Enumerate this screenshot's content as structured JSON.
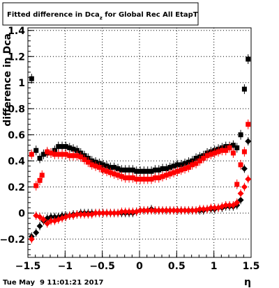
{
  "chart_data": {
    "type": "scatter",
    "title": "Fitted difference in Dca",
    "title_subscript": "z",
    "title_suffix": " for Global Rec All EtapT",
    "xlabel": "η",
    "ylabel": "difference in Dca",
    "xlim": [
      -1.5,
      1.5
    ],
    "ylim": [
      -0.34,
      1.42
    ],
    "x_ticks": [
      -1.5,
      -1,
      -0.5,
      0,
      0.5,
      1,
      1.5
    ],
    "x_tick_labels": [
      "−1.5",
      "−1",
      "−0.5",
      "0",
      "0.5",
      "1",
      "1.5"
    ],
    "y_ticks": [
      -0.2,
      0,
      0.2,
      0.4,
      0.6,
      0.8,
      1,
      1.2,
      1.4
    ],
    "y_tick_labels": [
      "−0.2",
      "0",
      "0.2",
      "0.4",
      "0.6",
      "0.8",
      "1",
      "1.2",
      "1.4"
    ],
    "grid": true,
    "footer": "Tue May  9 11:01:21 2017",
    "series": [
      {
        "marker": "square",
        "color": "#000000",
        "points": [
          [
            -1.45,
            1.03
          ],
          [
            -1.39,
            0.48
          ],
          [
            -1.34,
            0.42
          ],
          [
            -1.29,
            0.45
          ],
          [
            -1.24,
            0.46
          ],
          [
            -1.19,
            0.46
          ],
          [
            -1.14,
            0.48
          ],
          [
            -1.09,
            0.51
          ],
          [
            -1.04,
            0.51
          ],
          [
            -0.99,
            0.51
          ],
          [
            -0.94,
            0.5
          ],
          [
            -0.89,
            0.49
          ],
          [
            -0.84,
            0.48
          ],
          [
            -0.79,
            0.46
          ],
          [
            -0.74,
            0.44
          ],
          [
            -0.69,
            0.42
          ],
          [
            -0.64,
            0.4
          ],
          [
            -0.59,
            0.39
          ],
          [
            -0.54,
            0.38
          ],
          [
            -0.49,
            0.37
          ],
          [
            -0.44,
            0.36
          ],
          [
            -0.39,
            0.35
          ],
          [
            -0.34,
            0.35
          ],
          [
            -0.29,
            0.34
          ],
          [
            -0.24,
            0.33
          ],
          [
            -0.19,
            0.33
          ],
          [
            -0.14,
            0.33
          ],
          [
            -0.09,
            0.33
          ],
          [
            -0.04,
            0.32
          ],
          [
            0.01,
            0.32
          ],
          [
            0.06,
            0.32
          ],
          [
            0.11,
            0.32
          ],
          [
            0.16,
            0.32
          ],
          [
            0.21,
            0.33
          ],
          [
            0.26,
            0.33
          ],
          [
            0.31,
            0.34
          ],
          [
            0.36,
            0.34
          ],
          [
            0.41,
            0.35
          ],
          [
            0.46,
            0.36
          ],
          [
            0.51,
            0.37
          ],
          [
            0.56,
            0.37
          ],
          [
            0.61,
            0.38
          ],
          [
            0.66,
            0.39
          ],
          [
            0.71,
            0.4
          ],
          [
            0.76,
            0.42
          ],
          [
            0.81,
            0.43
          ],
          [
            0.86,
            0.44
          ],
          [
            0.91,
            0.46
          ],
          [
            0.96,
            0.47
          ],
          [
            1.01,
            0.48
          ],
          [
            1.06,
            0.49
          ],
          [
            1.11,
            0.5
          ],
          [
            1.16,
            0.51
          ],
          [
            1.21,
            0.51
          ],
          [
            1.26,
            0.52
          ],
          [
            1.31,
            0.5
          ],
          [
            1.36,
            0.6
          ],
          [
            1.41,
            0.95
          ],
          [
            1.46,
            1.18
          ]
        ]
      },
      {
        "marker": "square",
        "color": "#ff0000",
        "points": [
          [
            -1.45,
            0.45
          ],
          [
            -1.39,
            0.21
          ],
          [
            -1.34,
            0.25
          ],
          [
            -1.31,
            0.29
          ],
          [
            -1.24,
            0.47
          ],
          [
            -1.19,
            0.46
          ],
          [
            -1.14,
            0.45
          ],
          [
            -1.09,
            0.45
          ],
          [
            -1.04,
            0.45
          ],
          [
            -0.99,
            0.45
          ],
          [
            -0.94,
            0.44
          ],
          [
            -0.89,
            0.44
          ],
          [
            -0.84,
            0.44
          ],
          [
            -0.79,
            0.43
          ],
          [
            -0.74,
            0.41
          ],
          [
            -0.69,
            0.39
          ],
          [
            -0.64,
            0.37
          ],
          [
            -0.59,
            0.36
          ],
          [
            -0.54,
            0.35
          ],
          [
            -0.49,
            0.33
          ],
          [
            -0.44,
            0.32
          ],
          [
            -0.39,
            0.31
          ],
          [
            -0.34,
            0.3
          ],
          [
            -0.29,
            0.29
          ],
          [
            -0.24,
            0.28
          ],
          [
            -0.19,
            0.27
          ],
          [
            -0.14,
            0.27
          ],
          [
            -0.09,
            0.27
          ],
          [
            -0.04,
            0.26
          ],
          [
            0.01,
            0.26
          ],
          [
            0.06,
            0.26
          ],
          [
            0.11,
            0.26
          ],
          [
            0.16,
            0.26
          ],
          [
            0.21,
            0.27
          ],
          [
            0.26,
            0.27
          ],
          [
            0.31,
            0.28
          ],
          [
            0.36,
            0.29
          ],
          [
            0.41,
            0.3
          ],
          [
            0.46,
            0.31
          ],
          [
            0.51,
            0.32
          ],
          [
            0.56,
            0.33
          ],
          [
            0.61,
            0.34
          ],
          [
            0.66,
            0.35
          ],
          [
            0.71,
            0.37
          ],
          [
            0.76,
            0.38
          ],
          [
            0.81,
            0.4
          ],
          [
            0.86,
            0.42
          ],
          [
            0.91,
            0.44
          ],
          [
            0.96,
            0.45
          ],
          [
            1.01,
            0.46
          ],
          [
            1.06,
            0.47
          ],
          [
            1.11,
            0.48
          ],
          [
            1.16,
            0.48
          ],
          [
            1.21,
            0.5
          ],
          [
            1.26,
            0.46
          ],
          [
            1.31,
            0.22
          ],
          [
            1.36,
            0.37
          ],
          [
            1.41,
            0.47
          ],
          [
            1.46,
            0.68
          ]
        ]
      },
      {
        "marker": "diamond",
        "color": "#000000",
        "points": [
          [
            -1.45,
            -0.18
          ],
          [
            -1.39,
            -0.15
          ],
          [
            -1.34,
            -0.1
          ],
          [
            -1.29,
            -0.06
          ],
          [
            -1.24,
            -0.04
          ],
          [
            -1.19,
            -0.03
          ],
          [
            -1.14,
            -0.03
          ],
          [
            -1.09,
            -0.03
          ],
          [
            -1.04,
            -0.02
          ],
          [
            -0.99,
            -0.02
          ],
          [
            -0.94,
            -0.02
          ],
          [
            -0.89,
            -0.01
          ],
          [
            -0.84,
            -0.01
          ],
          [
            -0.79,
            0.0
          ],
          [
            -0.74,
            0.0
          ],
          [
            -0.69,
            0.0
          ],
          [
            -0.64,
            0.0
          ],
          [
            -0.59,
            0.0
          ],
          [
            -0.54,
            0.0
          ],
          [
            -0.49,
            0.0
          ],
          [
            -0.44,
            0.0
          ],
          [
            -0.39,
            0.0
          ],
          [
            -0.34,
            0.0
          ],
          [
            -0.29,
            0.0
          ],
          [
            -0.24,
            0.0
          ],
          [
            -0.19,
            0.0
          ],
          [
            -0.14,
            0.0
          ],
          [
            -0.09,
            0.0
          ],
          [
            -0.04,
            0.01
          ],
          [
            0.01,
            0.02
          ],
          [
            0.06,
            0.02
          ],
          [
            0.11,
            0.02
          ],
          [
            0.16,
            0.03
          ],
          [
            0.21,
            0.02
          ],
          [
            0.26,
            0.02
          ],
          [
            0.31,
            0.02
          ],
          [
            0.36,
            0.02
          ],
          [
            0.41,
            0.02
          ],
          [
            0.46,
            0.02
          ],
          [
            0.51,
            0.02
          ],
          [
            0.56,
            0.02
          ],
          [
            0.61,
            0.02
          ],
          [
            0.66,
            0.02
          ],
          [
            0.71,
            0.02
          ],
          [
            0.76,
            0.02
          ],
          [
            0.81,
            0.02
          ],
          [
            0.86,
            0.02
          ],
          [
            0.91,
            0.03
          ],
          [
            0.96,
            0.03
          ],
          [
            1.01,
            0.03
          ],
          [
            1.06,
            0.04
          ],
          [
            1.11,
            0.04
          ],
          [
            1.16,
            0.05
          ],
          [
            1.21,
            0.05
          ],
          [
            1.26,
            0.05
          ],
          [
            1.31,
            0.06
          ],
          [
            1.36,
            0.1
          ],
          [
            1.41,
            0.34
          ],
          [
            1.46,
            0.55
          ]
        ]
      },
      {
        "marker": "diamond",
        "color": "#ff0000",
        "points": [
          [
            -1.45,
            -0.2
          ],
          [
            -1.39,
            -0.02
          ],
          [
            -1.34,
            -0.03
          ],
          [
            -1.29,
            -0.05
          ],
          [
            -1.24,
            -0.08
          ],
          [
            -1.19,
            -0.06
          ],
          [
            -1.14,
            -0.06
          ],
          [
            -1.09,
            -0.05
          ],
          [
            -1.04,
            -0.04
          ],
          [
            -0.99,
            -0.03
          ],
          [
            -0.94,
            -0.02
          ],
          [
            -0.89,
            -0.02
          ],
          [
            -0.84,
            -0.01
          ],
          [
            -0.79,
            -0.01
          ],
          [
            -0.74,
            -0.01
          ],
          [
            -0.69,
            -0.01
          ],
          [
            -0.64,
            -0.01
          ],
          [
            -0.59,
            0.0
          ],
          [
            -0.54,
            0.0
          ],
          [
            -0.49,
            0.0
          ],
          [
            -0.44,
            0.0
          ],
          [
            -0.39,
            0.0
          ],
          [
            -0.34,
            0.0
          ],
          [
            -0.29,
            0.0
          ],
          [
            -0.24,
            0.01
          ],
          [
            -0.19,
            0.01
          ],
          [
            -0.14,
            0.01
          ],
          [
            -0.09,
            0.01
          ],
          [
            -0.04,
            0.01
          ],
          [
            0.01,
            0.02
          ],
          [
            0.06,
            0.02
          ],
          [
            0.11,
            0.02
          ],
          [
            0.16,
            0.02
          ],
          [
            0.21,
            0.02
          ],
          [
            0.26,
            0.02
          ],
          [
            0.31,
            0.02
          ],
          [
            0.36,
            0.02
          ],
          [
            0.41,
            0.02
          ],
          [
            0.46,
            0.02
          ],
          [
            0.51,
            0.02
          ],
          [
            0.56,
            0.02
          ],
          [
            0.61,
            0.02
          ],
          [
            0.66,
            0.02
          ],
          [
            0.71,
            0.02
          ],
          [
            0.76,
            0.02
          ],
          [
            0.81,
            0.03
          ],
          [
            0.86,
            0.03
          ],
          [
            0.91,
            0.03
          ],
          [
            0.96,
            0.04
          ],
          [
            1.01,
            0.04
          ],
          [
            1.06,
            0.04
          ],
          [
            1.11,
            0.05
          ],
          [
            1.16,
            0.06
          ],
          [
            1.21,
            0.06
          ],
          [
            1.26,
            0.06
          ],
          [
            1.31,
            0.08
          ],
          [
            1.36,
            0.15
          ],
          [
            1.41,
            0.2
          ],
          [
            1.46,
            0.26
          ]
        ]
      }
    ]
  }
}
